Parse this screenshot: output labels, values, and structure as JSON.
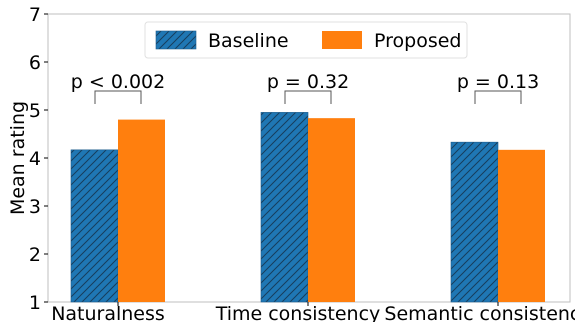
{
  "chart_data": {
    "type": "bar",
    "title": "",
    "xlabel": "",
    "ylabel": "Mean rating",
    "ylim": [
      1,
      7
    ],
    "yticks": [
      1,
      2,
      3,
      4,
      5,
      6,
      7
    ],
    "categories": [
      "Naturalness",
      "Time consistency",
      "Semantic consistency"
    ],
    "series": [
      {
        "name": "Baseline",
        "values": [
          4.17,
          4.95,
          4.33
        ],
        "color": "#1f77b4",
        "hatch": true
      },
      {
        "name": "Proposed",
        "values": [
          4.8,
          4.83,
          4.17
        ],
        "color": "#ff7f0e",
        "hatch": false
      }
    ],
    "annotations": [
      "p < 0.002",
      "p = 0.32",
      "p = 0.13"
    ],
    "legend_position": "top-center",
    "grid": false
  }
}
